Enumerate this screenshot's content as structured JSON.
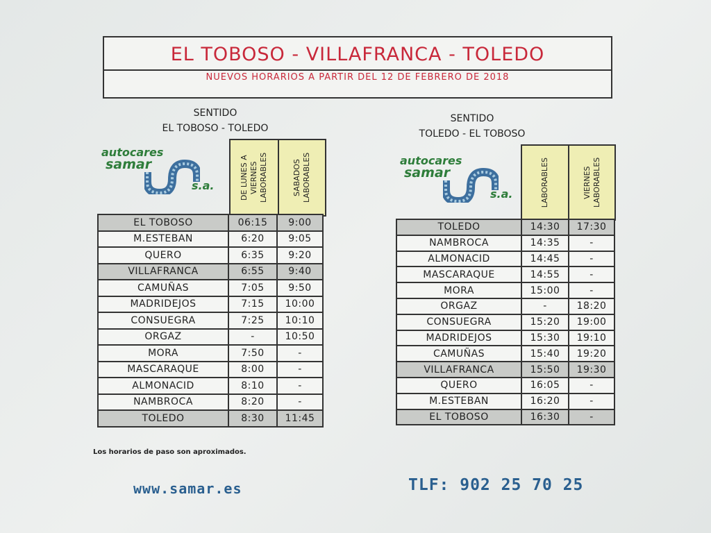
{
  "title": "EL TOBOSO - VILLAFRANCA - TOLEDO",
  "subtitle": "NUEVOS HORARIOS A PARTIR DEL 12 DE FEBRERO DE 2018",
  "logo": {
    "line1": "autocares",
    "line2": "samar",
    "suffix": "s.a."
  },
  "colors": {
    "title": "#c8283a",
    "header_cell": "#efeeb4",
    "highlight_row": "#c9cbc8",
    "contact": "#2a5f8f",
    "logo_green": "#2e7d3a"
  },
  "left": {
    "direction_label": "SENTIDO",
    "direction": "EL TOBOSO - TOLEDO",
    "columns": [
      "DE LUNES A VIERNES LABORABLES",
      "SABADOS LABORABLES"
    ],
    "rows": [
      {
        "stop": "EL TOBOSO",
        "t1": "06:15",
        "t2": "9:00",
        "hl": true
      },
      {
        "stop": "M.ESTEBAN",
        "t1": "6:20",
        "t2": "9:05"
      },
      {
        "stop": "QUERO",
        "t1": "6:35",
        "t2": "9:20"
      },
      {
        "stop": "VILLAFRANCA",
        "t1": "6:55",
        "t2": "9:40",
        "hl": true
      },
      {
        "stop": "CAMUÑAS",
        "t1": "7:05",
        "t2": "9:50"
      },
      {
        "stop": "MADRIDEJOS",
        "t1": "7:15",
        "t2": "10:00"
      },
      {
        "stop": "CONSUEGRA",
        "t1": "7:25",
        "t2": "10:10"
      },
      {
        "stop": "ORGAZ",
        "t1": "-",
        "t2": "10:50"
      },
      {
        "stop": "MORA",
        "t1": "7:50",
        "t2": "-"
      },
      {
        "stop": "MASCARAQUE",
        "t1": "8:00",
        "t2": "-"
      },
      {
        "stop": "ALMONACID",
        "t1": "8:10",
        "t2": "-"
      },
      {
        "stop": "NAMBROCA",
        "t1": "8:20",
        "t2": "-"
      },
      {
        "stop": "TOLEDO",
        "t1": "8:30",
        "t2": "11:45",
        "hl": true
      }
    ]
  },
  "right": {
    "direction_label": "SENTIDO",
    "direction": "TOLEDO - EL TOBOSO",
    "columns": [
      "LABORABLES",
      "VIERNES LABORABLES"
    ],
    "rows": [
      {
        "stop": "TOLEDO",
        "t1": "14:30",
        "t2": "17:30",
        "hl": true
      },
      {
        "stop": "NAMBROCA",
        "t1": "14:35",
        "t2": "-"
      },
      {
        "stop": "ALMONACID",
        "t1": "14:45",
        "t2": "-"
      },
      {
        "stop": "MASCARAQUE",
        "t1": "14:55",
        "t2": "-"
      },
      {
        "stop": "MORA",
        "t1": "15:00",
        "t2": "-"
      },
      {
        "stop": "ORGAZ",
        "t1": "-",
        "t2": "18:20"
      },
      {
        "stop": "CONSUEGRA",
        "t1": "15:20",
        "t2": "19:00"
      },
      {
        "stop": "MADRIDEJOS",
        "t1": "15:30",
        "t2": "19:10"
      },
      {
        "stop": "CAMUÑAS",
        "t1": "15:40",
        "t2": "19:20"
      },
      {
        "stop": "VILLAFRANCA",
        "t1": "15:50",
        "t2": "19:30",
        "hl": true
      },
      {
        "stop": "QUERO",
        "t1": "16:05",
        "t2": "-"
      },
      {
        "stop": "M.ESTEBAN",
        "t1": "16:20",
        "t2": "-"
      },
      {
        "stop": "EL TOBOSO",
        "t1": "16:30",
        "t2": "-",
        "hl": true
      }
    ]
  },
  "note": "Los horarios de paso son aproximados.",
  "website": "www.samar.es",
  "phone": "TLF: 902 25 70 25"
}
